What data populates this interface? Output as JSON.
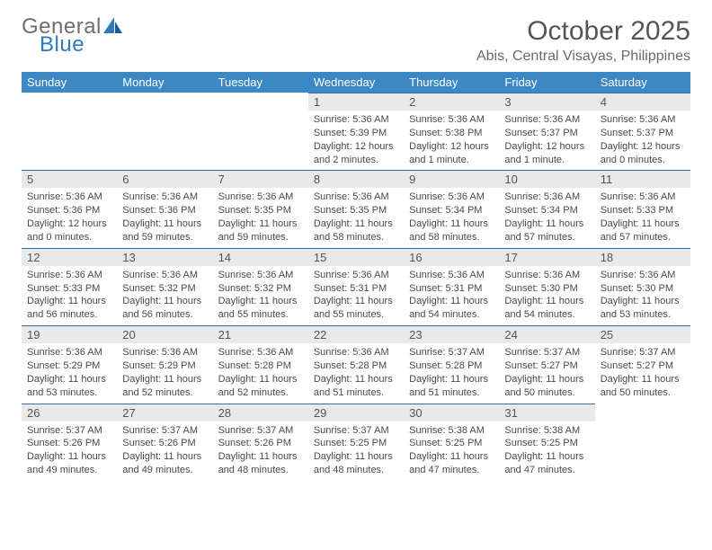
{
  "logo": {
    "word1": "General",
    "word2": "Blue"
  },
  "title": "October 2025",
  "location": "Abis, Central Visayas, Philippines",
  "colors": {
    "header_bg": "#3b88c4",
    "header_text": "#ffffff",
    "dayrow_bg": "#e9e9e9",
    "dayrow_border": "#2f6fa8",
    "body_text": "#4a4a4a",
    "logo_gray": "#6e6e6e",
    "logo_blue": "#2f7bbf"
  },
  "weekdays": [
    "Sunday",
    "Monday",
    "Tuesday",
    "Wednesday",
    "Thursday",
    "Friday",
    "Saturday"
  ],
  "weeks": [
    [
      null,
      null,
      null,
      {
        "n": "1",
        "sr": "5:36 AM",
        "ss": "5:39 PM",
        "dl1": "12 hours",
        "dl2": "and 2 minutes."
      },
      {
        "n": "2",
        "sr": "5:36 AM",
        "ss": "5:38 PM",
        "dl1": "12 hours",
        "dl2": "and 1 minute."
      },
      {
        "n": "3",
        "sr": "5:36 AM",
        "ss": "5:37 PM",
        "dl1": "12 hours",
        "dl2": "and 1 minute."
      },
      {
        "n": "4",
        "sr": "5:36 AM",
        "ss": "5:37 PM",
        "dl1": "12 hours",
        "dl2": "and 0 minutes."
      }
    ],
    [
      {
        "n": "5",
        "sr": "5:36 AM",
        "ss": "5:36 PM",
        "dl1": "12 hours",
        "dl2": "and 0 minutes."
      },
      {
        "n": "6",
        "sr": "5:36 AM",
        "ss": "5:36 PM",
        "dl1": "11 hours",
        "dl2": "and 59 minutes."
      },
      {
        "n": "7",
        "sr": "5:36 AM",
        "ss": "5:35 PM",
        "dl1": "11 hours",
        "dl2": "and 59 minutes."
      },
      {
        "n": "8",
        "sr": "5:36 AM",
        "ss": "5:35 PM",
        "dl1": "11 hours",
        "dl2": "and 58 minutes."
      },
      {
        "n": "9",
        "sr": "5:36 AM",
        "ss": "5:34 PM",
        "dl1": "11 hours",
        "dl2": "and 58 minutes."
      },
      {
        "n": "10",
        "sr": "5:36 AM",
        "ss": "5:34 PM",
        "dl1": "11 hours",
        "dl2": "and 57 minutes."
      },
      {
        "n": "11",
        "sr": "5:36 AM",
        "ss": "5:33 PM",
        "dl1": "11 hours",
        "dl2": "and 57 minutes."
      }
    ],
    [
      {
        "n": "12",
        "sr": "5:36 AM",
        "ss": "5:33 PM",
        "dl1": "11 hours",
        "dl2": "and 56 minutes."
      },
      {
        "n": "13",
        "sr": "5:36 AM",
        "ss": "5:32 PM",
        "dl1": "11 hours",
        "dl2": "and 56 minutes."
      },
      {
        "n": "14",
        "sr": "5:36 AM",
        "ss": "5:32 PM",
        "dl1": "11 hours",
        "dl2": "and 55 minutes."
      },
      {
        "n": "15",
        "sr": "5:36 AM",
        "ss": "5:31 PM",
        "dl1": "11 hours",
        "dl2": "and 55 minutes."
      },
      {
        "n": "16",
        "sr": "5:36 AM",
        "ss": "5:31 PM",
        "dl1": "11 hours",
        "dl2": "and 54 minutes."
      },
      {
        "n": "17",
        "sr": "5:36 AM",
        "ss": "5:30 PM",
        "dl1": "11 hours",
        "dl2": "and 54 minutes."
      },
      {
        "n": "18",
        "sr": "5:36 AM",
        "ss": "5:30 PM",
        "dl1": "11 hours",
        "dl2": "and 53 minutes."
      }
    ],
    [
      {
        "n": "19",
        "sr": "5:36 AM",
        "ss": "5:29 PM",
        "dl1": "11 hours",
        "dl2": "and 53 minutes."
      },
      {
        "n": "20",
        "sr": "5:36 AM",
        "ss": "5:29 PM",
        "dl1": "11 hours",
        "dl2": "and 52 minutes."
      },
      {
        "n": "21",
        "sr": "5:36 AM",
        "ss": "5:28 PM",
        "dl1": "11 hours",
        "dl2": "and 52 minutes."
      },
      {
        "n": "22",
        "sr": "5:36 AM",
        "ss": "5:28 PM",
        "dl1": "11 hours",
        "dl2": "and 51 minutes."
      },
      {
        "n": "23",
        "sr": "5:37 AM",
        "ss": "5:28 PM",
        "dl1": "11 hours",
        "dl2": "and 51 minutes."
      },
      {
        "n": "24",
        "sr": "5:37 AM",
        "ss": "5:27 PM",
        "dl1": "11 hours",
        "dl2": "and 50 minutes."
      },
      {
        "n": "25",
        "sr": "5:37 AM",
        "ss": "5:27 PM",
        "dl1": "11 hours",
        "dl2": "and 50 minutes."
      }
    ],
    [
      {
        "n": "26",
        "sr": "5:37 AM",
        "ss": "5:26 PM",
        "dl1": "11 hours",
        "dl2": "and 49 minutes."
      },
      {
        "n": "27",
        "sr": "5:37 AM",
        "ss": "5:26 PM",
        "dl1": "11 hours",
        "dl2": "and 49 minutes."
      },
      {
        "n": "28",
        "sr": "5:37 AM",
        "ss": "5:26 PM",
        "dl1": "11 hours",
        "dl2": "and 48 minutes."
      },
      {
        "n": "29",
        "sr": "5:37 AM",
        "ss": "5:25 PM",
        "dl1": "11 hours",
        "dl2": "and 48 minutes."
      },
      {
        "n": "30",
        "sr": "5:38 AM",
        "ss": "5:25 PM",
        "dl1": "11 hours",
        "dl2": "and 47 minutes."
      },
      {
        "n": "31",
        "sr": "5:38 AM",
        "ss": "5:25 PM",
        "dl1": "11 hours",
        "dl2": "and 47 minutes."
      },
      null
    ]
  ],
  "labels": {
    "sunrise": "Sunrise:",
    "sunset": "Sunset:",
    "daylight": "Daylight:"
  }
}
